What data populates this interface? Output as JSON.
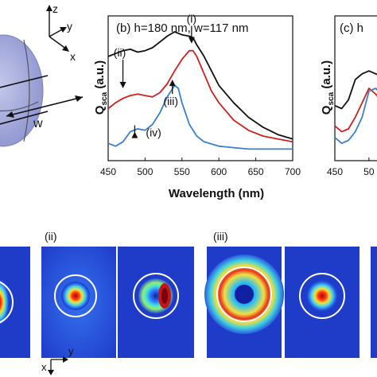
{
  "colors": {
    "black_series": "#111111",
    "red_series": "#d11f1f",
    "blue_series": "#3a7fd0",
    "sphere_fill": "#aab0de",
    "map_bg": "#1f3cc8"
  },
  "schematic": {
    "axis_z": "z",
    "axis_y": "y",
    "axis_x": "x",
    "width_label": "w"
  },
  "chart_data": [
    {
      "type": "line",
      "panel": "(b)",
      "title": "(b) h=180 nm, w=117 nm",
      "xlabel": "Wavelength (nm)",
      "ylabel": "Q",
      "ylabel_sub": "sca",
      "ylabel_units": "(a.u.)",
      "xlim": [
        450,
        700
      ],
      "xticks": [
        "450",
        "500",
        "550",
        "600",
        "650",
        "700"
      ],
      "ylim": [
        0,
        1
      ],
      "series": [
        {
          "color": "#111111",
          "x": [
            450,
            460,
            470,
            480,
            490,
            500,
            510,
            520,
            530,
            540,
            550,
            560,
            565,
            570,
            580,
            590,
            600,
            620,
            640,
            660,
            680,
            700
          ],
          "y": [
            0.72,
            0.74,
            0.76,
            0.77,
            0.75,
            0.76,
            0.78,
            0.82,
            0.86,
            0.89,
            0.87,
            0.86,
            0.85,
            0.8,
            0.72,
            0.62,
            0.52,
            0.4,
            0.3,
            0.23,
            0.18,
            0.15
          ]
        },
        {
          "color": "#d11f1f",
          "x": [
            450,
            460,
            470,
            480,
            490,
            500,
            510,
            520,
            530,
            540,
            550,
            560,
            565,
            570,
            580,
            590,
            600,
            620,
            640,
            660,
            680,
            700
          ],
          "y": [
            0.36,
            0.4,
            0.43,
            0.45,
            0.46,
            0.45,
            0.44,
            0.47,
            0.53,
            0.62,
            0.7,
            0.76,
            0.76,
            0.72,
            0.6,
            0.48,
            0.4,
            0.28,
            0.21,
            0.17,
            0.15,
            0.13
          ]
        },
        {
          "color": "#3a7fd0",
          "x": [
            450,
            460,
            470,
            480,
            490,
            500,
            510,
            520,
            530,
            540,
            545,
            550,
            560,
            570,
            580,
            600,
            620,
            640,
            660,
            680,
            700
          ],
          "y": [
            0.12,
            0.1,
            0.13,
            0.2,
            0.22,
            0.21,
            0.25,
            0.33,
            0.44,
            0.52,
            0.5,
            0.4,
            0.25,
            0.17,
            0.13,
            0.1,
            0.09,
            0.08,
            0.08,
            0.08,
            0.08
          ]
        }
      ],
      "annotations": [
        {
          "label": "(i)",
          "x": 563,
          "y": 0.81
        },
        {
          "label": "(ii)",
          "x": 470,
          "y": 0.5
        },
        {
          "label": "(iii)",
          "x": 537,
          "y": 0.56
        },
        {
          "label": "(iv)",
          "x": 486,
          "y": 0.2
        }
      ]
    },
    {
      "type": "line",
      "panel": "(c)",
      "title": "(c) h",
      "xlabel": "",
      "ylabel": "Q",
      "ylabel_sub": "sca",
      "ylabel_units": "(a.u.)",
      "xlim": [
        450,
        520
      ],
      "xticks": [
        "450",
        "50"
      ],
      "ylim": [
        0,
        1
      ],
      "series": [
        {
          "color": "#111111",
          "x": [
            450,
            460,
            470,
            480,
            490,
            500,
            510,
            520
          ],
          "y": [
            0.38,
            0.36,
            0.42,
            0.56,
            0.6,
            0.62,
            0.6,
            0.58
          ]
        },
        {
          "color": "#d11f1f",
          "x": [
            450,
            460,
            470,
            480,
            490,
            500,
            510,
            520
          ],
          "y": [
            0.24,
            0.2,
            0.22,
            0.3,
            0.4,
            0.5,
            0.46,
            0.4
          ]
        },
        {
          "color": "#3a7fd0",
          "x": [
            450,
            460,
            470,
            480,
            490,
            500,
            510,
            520
          ],
          "y": [
            0.16,
            0.12,
            0.14,
            0.2,
            0.3,
            0.48,
            0.5,
            0.44
          ]
        }
      ]
    }
  ],
  "field_maps": {
    "group_labels": [
      "(ii)",
      "(iii)"
    ],
    "coord_axis_x": "x",
    "coord_axis_y": "y"
  }
}
